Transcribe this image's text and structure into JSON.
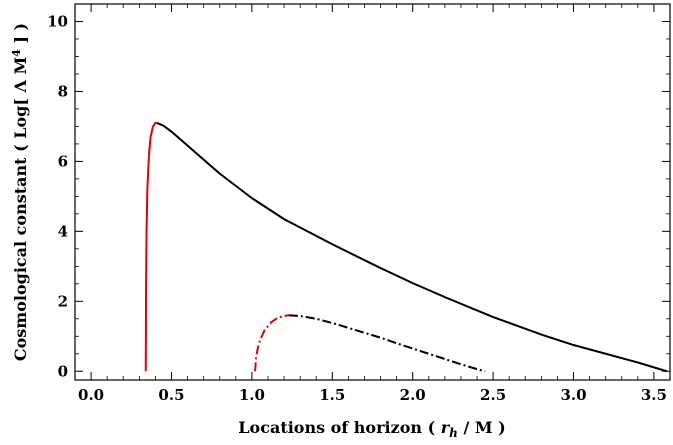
{
  "chart_data": {
    "type": "line",
    "title": "",
    "xlabel": "Locations of horizon ( r_h / M )",
    "ylabel": "Cosmological constant ( Log[ Λ M^4 ] )",
    "xlabel_parts": {
      "pre": "Locations of horizon ( ",
      "var": "r",
      "sub": "h",
      "post": " / M )"
    },
    "ylabel_parts": {
      "pre": "Cosmological constant ( Log[ Λ M",
      "sup": "4",
      "post": " ] )"
    },
    "xlim": [
      -0.1,
      3.6
    ],
    "ylim": [
      -0.25,
      10.5
    ],
    "xticks": [
      0.0,
      0.5,
      1.0,
      1.5,
      2.0,
      2.5,
      3.0,
      3.5
    ],
    "xtick_labels": [
      "0.0",
      "0.5",
      "1.0",
      "1.5",
      "2.0",
      "2.5",
      "3.0",
      "3.5"
    ],
    "yticks": [
      0,
      2,
      4,
      6,
      8,
      10
    ],
    "ytick_labels": [
      "0",
      "2",
      "4",
      "6",
      "8",
      "10"
    ],
    "grid": false,
    "series": [
      {
        "color": "#e00000",
        "style": "solid",
        "x": [
          0.34,
          0.342,
          0.345,
          0.35,
          0.36,
          0.37,
          0.385,
          0.4,
          0.41
        ],
        "y": [
          0.0,
          2.5,
          4.0,
          5.2,
          6.2,
          6.7,
          7.0,
          7.1,
          7.1
        ]
      },
      {
        "color": "#000000",
        "style": "solid",
        "x": [
          0.41,
          0.45,
          0.5,
          0.6,
          0.7,
          0.8,
          1.0,
          1.2,
          1.5,
          1.8,
          2.0,
          2.2,
          2.5,
          2.8,
          3.0,
          3.2,
          3.4,
          3.58
        ],
        "y": [
          7.1,
          7.02,
          6.85,
          6.45,
          6.05,
          5.65,
          4.95,
          4.35,
          3.63,
          2.95,
          2.52,
          2.12,
          1.55,
          1.05,
          0.75,
          0.5,
          0.25,
          0.0
        ]
      },
      {
        "color": "#e00000",
        "style": "dashdot",
        "x": [
          1.02,
          1.025,
          1.035,
          1.05,
          1.08,
          1.12,
          1.16,
          1.2,
          1.23
        ],
        "y": [
          0.0,
          0.35,
          0.62,
          0.88,
          1.18,
          1.4,
          1.53,
          1.58,
          1.6
        ]
      },
      {
        "color": "#000000",
        "style": "dashdot",
        "x": [
          1.23,
          1.3,
          1.4,
          1.5,
          1.6,
          1.7,
          1.8,
          1.9,
          2.0,
          2.1,
          2.2,
          2.3,
          2.4,
          2.45
        ],
        "y": [
          1.6,
          1.58,
          1.5,
          1.38,
          1.24,
          1.1,
          0.96,
          0.8,
          0.65,
          0.5,
          0.35,
          0.2,
          0.06,
          0.0
        ]
      }
    ]
  }
}
